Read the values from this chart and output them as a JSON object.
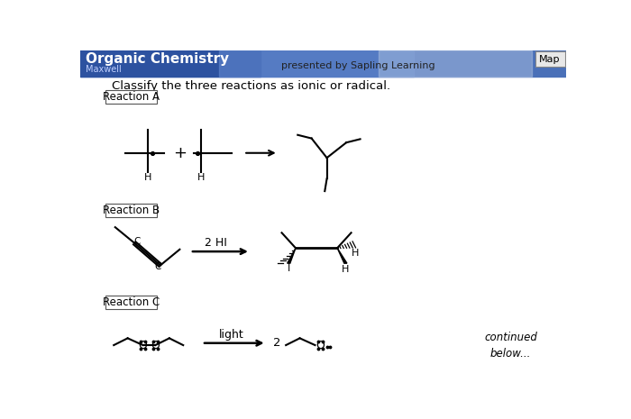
{
  "title": "Organic Chemistry",
  "subtitle": "Maxwell",
  "header_text": "presented by Sapling Learning",
  "instruction": "Classify the three reactions as ionic or radical.",
  "bg_color": "#ffffff",
  "map_button": "Map",
  "reactions": [
    "Reaction A",
    "Reaction B",
    "Reaction C"
  ],
  "reaction_b_label": "2 HI",
  "reaction_c_label": "light",
  "reaction_c_2": "2",
  "continued": "continued\nbelow..."
}
